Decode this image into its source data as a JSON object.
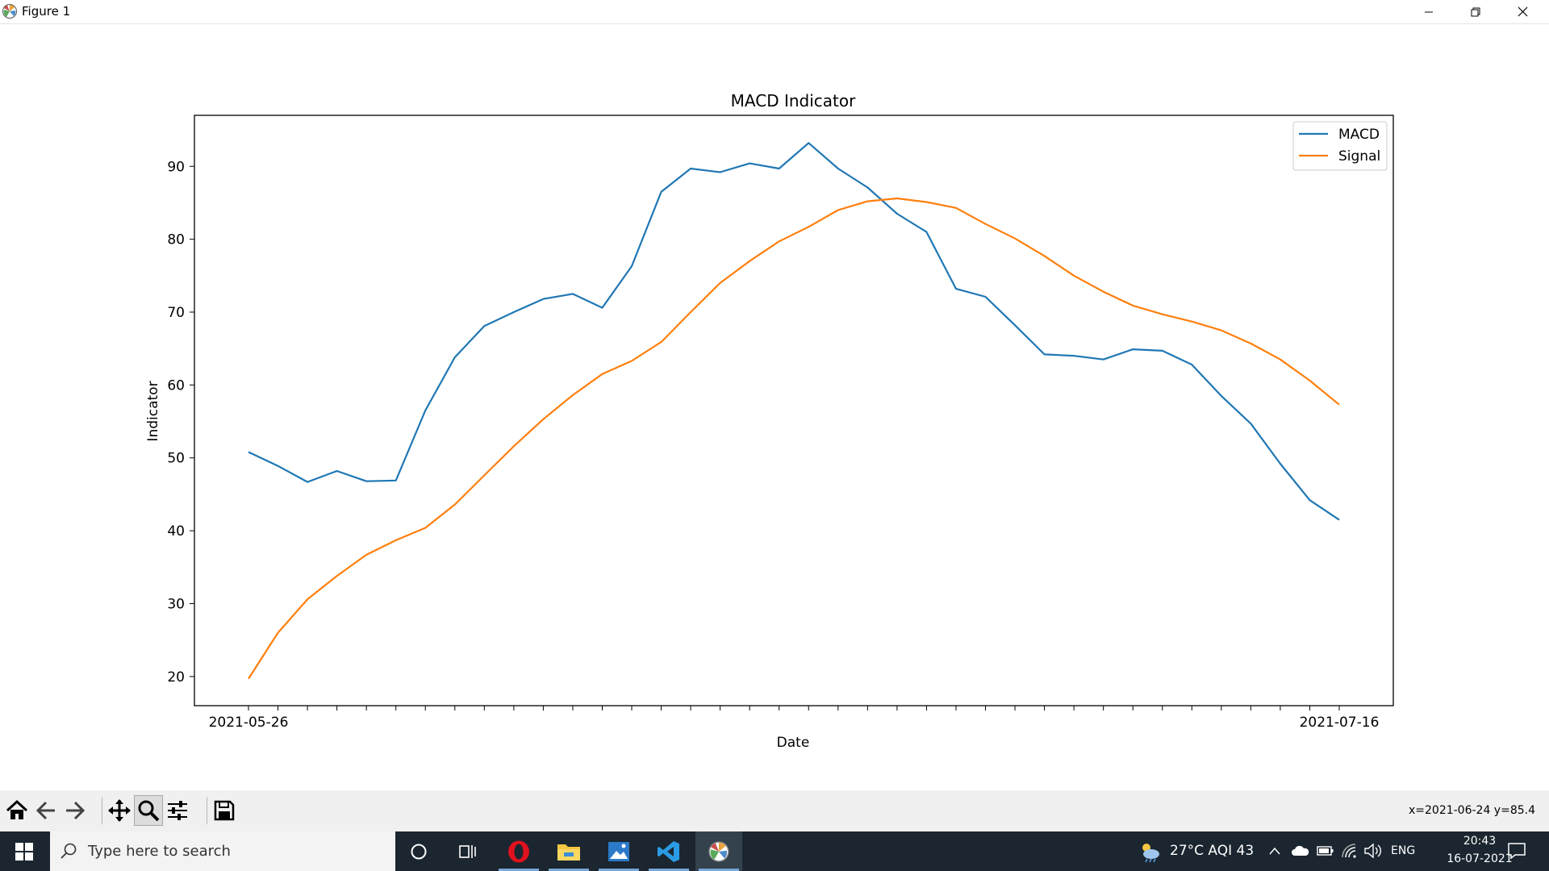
{
  "window": {
    "title": "Figure 1"
  },
  "chart_data": {
    "type": "line",
    "title": "MACD Indicator",
    "xlabel": "Date",
    "ylabel": "Indicator",
    "first_tick_label": "2021-05-26",
    "last_tick_label": "2021-07-16",
    "x": [
      "2021-05-26",
      "2021-05-27",
      "2021-05-28",
      "2021-05-31",
      "2021-06-01",
      "2021-06-02",
      "2021-06-03",
      "2021-06-04",
      "2021-06-07",
      "2021-06-08",
      "2021-06-09",
      "2021-06-10",
      "2021-06-11",
      "2021-06-14",
      "2021-06-15",
      "2021-06-16",
      "2021-06-17",
      "2021-06-18",
      "2021-06-21",
      "2021-06-22",
      "2021-06-23",
      "2021-06-24",
      "2021-06-25",
      "2021-06-28",
      "2021-06-29",
      "2021-06-30",
      "2021-07-01",
      "2021-07-02",
      "2021-07-05",
      "2021-07-06",
      "2021-07-07",
      "2021-07-08",
      "2021-07-09",
      "2021-07-12",
      "2021-07-13",
      "2021-07-14",
      "2021-07-15",
      "2021-07-16"
    ],
    "ylim": [
      16,
      97
    ],
    "yticks": [
      20,
      30,
      40,
      50,
      60,
      70,
      80,
      90
    ],
    "grid": false,
    "legend_position": "top-right",
    "series": [
      {
        "name": "MACD",
        "color": "#1f77b4",
        "values": [
          50.8,
          48.9,
          46.7,
          48.2,
          46.8,
          46.9,
          56.5,
          63.8,
          68.1,
          70.0,
          71.8,
          72.5,
          70.6,
          76.3,
          86.5,
          89.7,
          89.2,
          90.4,
          89.7,
          93.2,
          89.7,
          87.1,
          83.5,
          81.0,
          73.2,
          72.1,
          68.2,
          64.2,
          64.0,
          63.5,
          64.9,
          64.7,
          62.8,
          58.5,
          54.7,
          49.2,
          44.2,
          41.5
        ]
      },
      {
        "name": "Signal",
        "color": "#ff7f0e",
        "values": [
          19.7,
          26.0,
          30.6,
          33.8,
          36.7,
          38.7,
          40.4,
          43.6,
          47.6,
          51.6,
          55.3,
          58.6,
          61.5,
          63.3,
          65.9,
          70.0,
          74.0,
          77.0,
          79.7,
          81.7,
          84.0,
          85.2,
          85.6,
          85.1,
          84.3,
          82.1,
          80.1,
          77.7,
          75.0,
          72.8,
          70.9,
          69.7,
          68.7,
          67.5,
          65.7,
          63.5,
          60.6,
          57.3
        ]
      }
    ]
  },
  "toolbar": {
    "buttons": [
      {
        "name": "home",
        "icon": "home-icon"
      },
      {
        "name": "back",
        "icon": "arrow-left-icon"
      },
      {
        "name": "forward",
        "icon": "arrow-right-icon"
      },
      {
        "name": "pan",
        "icon": "move-icon"
      },
      {
        "name": "zoom",
        "icon": "magnifier-icon",
        "active": true
      },
      {
        "name": "configure-subplots",
        "icon": "sliders-icon"
      },
      {
        "name": "save",
        "icon": "floppy-icon"
      }
    ],
    "coords": "x=2021-06-24 y=85.4"
  },
  "taskbar": {
    "search_placeholder": "Type here to search",
    "weather": "27°C  AQI 43",
    "language": "ENG",
    "time": "20:43",
    "date": "16-07-2021"
  }
}
